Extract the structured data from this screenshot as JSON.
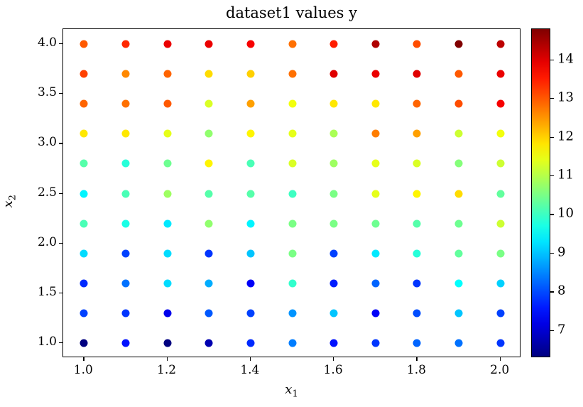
{
  "figure": {
    "title": "dataset1 values y",
    "background": "#ffffff",
    "text_color": "#000000"
  },
  "chart_data": {
    "type": "scatter",
    "title": "dataset1 values y",
    "xlabel": "x_1",
    "ylabel": "x_2",
    "xlabel_base": "x",
    "xlabel_sub": "1",
    "ylabel_base": "x",
    "ylabel_sub": "2",
    "colormap": "jet",
    "vmin": 6.3,
    "vmax": 14.8,
    "xlim": [
      0.95,
      2.05
    ],
    "ylim": [
      0.85,
      4.15
    ],
    "grid": false,
    "legend": "none",
    "colorbar_position": "right",
    "x_tick_labels": [
      "1.0",
      "1.2",
      "1.4",
      "1.6",
      "1.8",
      "2.0"
    ],
    "x_tick_values": [
      1.0,
      1.2,
      1.4,
      1.6,
      1.8,
      2.0
    ],
    "y_tick_labels": [
      "1.0",
      "1.5",
      "2.0",
      "2.5",
      "3.0",
      "3.5",
      "4.0"
    ],
    "y_tick_values": [
      1.0,
      1.5,
      2.0,
      2.5,
      3.0,
      3.5,
      4.0
    ],
    "colorbar_tick_labels": [
      "7",
      "8",
      "9",
      "10",
      "11",
      "12",
      "13",
      "14"
    ],
    "colorbar_tick_values": [
      7,
      8,
      9,
      10,
      11,
      12,
      13,
      14
    ],
    "x1": [
      1.0,
      1.1,
      1.2,
      1.3,
      1.4,
      1.5,
      1.6,
      1.7,
      1.8,
      1.9,
      2.0
    ],
    "rows": [
      {
        "x2": 1.0,
        "values": [
          6.3,
          7.5,
          6.3,
          6.7,
          7.7,
          8.4,
          7.5,
          7.8,
          8.2,
          8.3,
          7.8
        ]
      },
      {
        "x2": 1.3,
        "values": [
          7.9,
          7.8,
          7.2,
          8.1,
          7.9,
          8.6,
          9.0,
          7.3,
          8.0,
          9.0,
          7.9
        ]
      },
      {
        "x2": 1.6,
        "values": [
          7.7,
          8.3,
          9.2,
          8.8,
          7.3,
          9.9,
          7.6,
          8.2,
          7.8,
          9.5,
          9.1
        ]
      },
      {
        "x2": 1.9,
        "values": [
          9.2,
          7.9,
          9.2,
          7.8,
          9.0,
          10.5,
          7.9,
          9.3,
          9.8,
          10.3,
          10.5
        ]
      },
      {
        "x2": 2.2,
        "values": [
          10.1,
          9.7,
          9.3,
          10.7,
          9.4,
          10.5,
          10.5,
          10.4,
          10.2,
          10.4,
          11.2
        ]
      },
      {
        "x2": 2.5,
        "values": [
          9.4,
          10.1,
          10.8,
          10.2,
          10.2,
          10.0,
          10.5,
          11.4,
          11.7,
          11.9,
          10.3
        ]
      },
      {
        "x2": 2.8,
        "values": [
          10.2,
          9.8,
          10.4,
          11.7,
          10.1,
          11.3,
          10.8,
          11.4,
          11.3,
          10.6,
          11.2
        ]
      },
      {
        "x2": 3.1,
        "values": [
          11.8,
          11.8,
          11.4,
          10.7,
          11.7,
          11.4,
          10.9,
          12.7,
          12.4,
          11.2,
          11.5
        ]
      },
      {
        "x2": 3.4,
        "values": [
          12.9,
          12.8,
          13.0,
          11.3,
          12.4,
          11.5,
          11.8,
          11.8,
          12.9,
          13.1,
          13.8
        ]
      },
      {
        "x2": 3.7,
        "values": [
          13.2,
          12.6,
          12.9,
          11.9,
          12.0,
          12.8,
          14.0,
          13.9,
          14.0,
          13.0,
          13.9
        ]
      },
      {
        "x2": 4.0,
        "values": [
          13.0,
          13.4,
          13.9,
          13.9,
          13.8,
          12.8,
          13.5,
          14.4,
          13.1,
          14.8,
          14.3
        ]
      }
    ]
  }
}
